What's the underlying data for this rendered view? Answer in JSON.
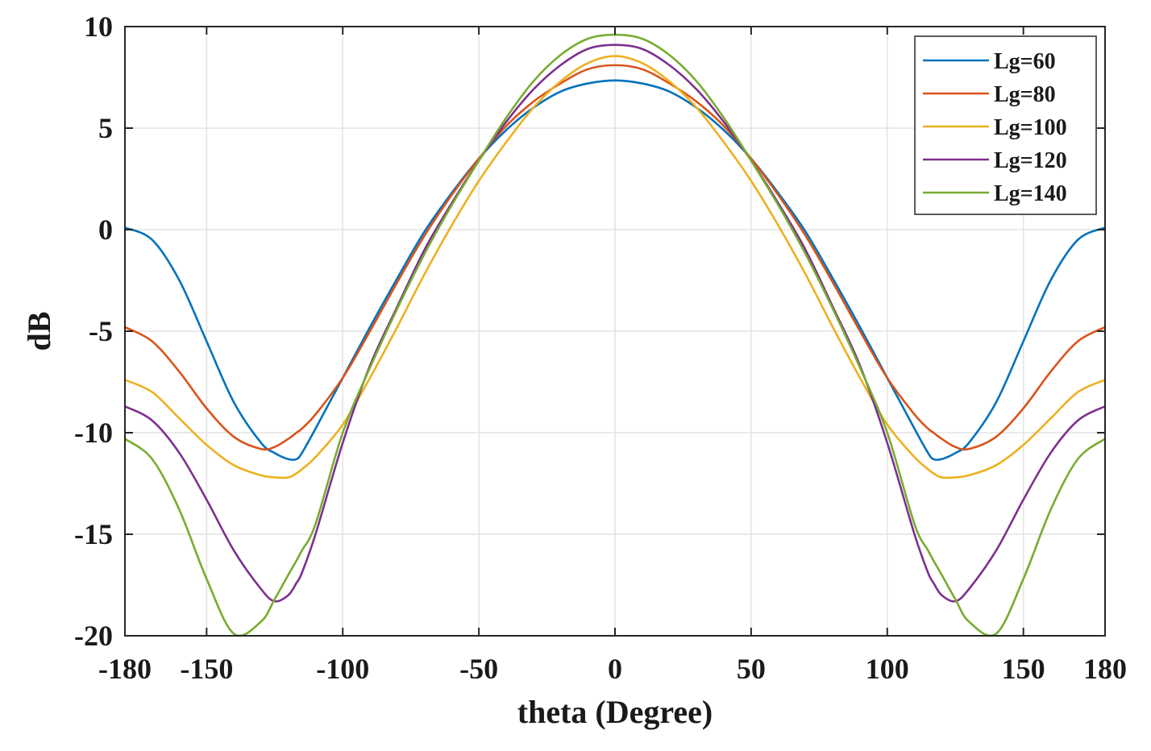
{
  "chart_data": {
    "type": "line",
    "title": "",
    "xlabel": "theta (Degree)",
    "ylabel": "dB",
    "xlim": [
      -180,
      180
    ],
    "ylim": [
      -20,
      10
    ],
    "xticks": [
      -180,
      -150,
      -100,
      -50,
      0,
      50,
      100,
      150,
      180
    ],
    "yticks": [
      -20,
      -15,
      -10,
      -5,
      0,
      5,
      10
    ],
    "xtick_labels": [
      "-180",
      "-150",
      "-100",
      "-50",
      "0",
      "50",
      "100",
      "150",
      "180"
    ],
    "ytick_labels": [
      "-20",
      "-15",
      "-10",
      "-5",
      "0",
      "5",
      "10"
    ],
    "grid": true,
    "legend_position": "top-right",
    "x": [
      -180,
      -170,
      -160,
      -150,
      -140,
      -130,
      -125,
      -120,
      -117,
      -115,
      -110,
      -100,
      -90,
      -80,
      -70,
      -60,
      -50,
      -40,
      -30,
      -20,
      -10,
      0,
      10,
      20,
      30,
      40,
      50,
      60,
      70,
      80,
      90,
      100,
      110,
      115,
      117,
      120,
      125,
      130,
      140,
      150,
      160,
      170,
      180
    ],
    "series": [
      {
        "name": "Lg=60",
        "color": "#0072BD",
        "values": [
          0.1,
          -0.5,
          -2.5,
          -5.5,
          -8.5,
          -10.5,
          -11.0,
          -11.3,
          -11.3,
          -11.0,
          -9.8,
          -7.3,
          -4.8,
          -2.4,
          -0.1,
          1.8,
          3.5,
          4.9,
          6.0,
          6.8,
          7.2,
          7.35,
          7.2,
          6.8,
          6.0,
          4.9,
          3.5,
          1.8,
          -0.1,
          -2.4,
          -4.8,
          -7.3,
          -9.8,
          -11.0,
          -11.3,
          -11.3,
          -11.0,
          -10.5,
          -8.5,
          -5.5,
          -2.5,
          -0.5,
          0.1
        ]
      },
      {
        "name": "Lg=80",
        "color": "#D95319",
        "values": [
          -4.8,
          -5.5,
          -7.0,
          -8.8,
          -10.2,
          -10.8,
          -10.7,
          -10.3,
          -10.0,
          -9.8,
          -9.1,
          -7.3,
          -5.0,
          -2.6,
          -0.3,
          1.7,
          3.5,
          5.1,
          6.3,
          7.2,
          7.9,
          8.1,
          7.9,
          7.2,
          6.3,
          5.1,
          3.5,
          1.7,
          -0.3,
          -2.6,
          -5.0,
          -7.3,
          -9.1,
          -9.8,
          -10.0,
          -10.3,
          -10.7,
          -10.8,
          -10.2,
          -8.8,
          -7.0,
          -5.5,
          -4.8
        ]
      },
      {
        "name": "Lg=100",
        "color": "#EDB120",
        "values": [
          -7.4,
          -8.0,
          -9.3,
          -10.6,
          -11.6,
          -12.1,
          -12.2,
          -12.2,
          -12.0,
          -11.8,
          -11.2,
          -9.6,
          -7.3,
          -4.8,
          -2.2,
          0.2,
          2.4,
          4.3,
          6.0,
          7.3,
          8.2,
          8.55,
          8.2,
          7.3,
          6.0,
          4.3,
          2.4,
          0.2,
          -2.2,
          -4.8,
          -7.3,
          -9.6,
          -11.2,
          -11.8,
          -12.0,
          -12.2,
          -12.2,
          -12.1,
          -11.6,
          -10.6,
          -9.3,
          -8.0,
          -7.4
        ]
      },
      {
        "name": "Lg=120",
        "color": "#7E2F8E",
        "values": [
          -8.7,
          -9.4,
          -11.0,
          -13.3,
          -15.8,
          -17.7,
          -18.3,
          -18.0,
          -17.4,
          -16.9,
          -15.0,
          -10.5,
          -6.7,
          -3.8,
          -1.0,
          1.3,
          3.4,
          5.3,
          6.9,
          8.1,
          8.9,
          9.1,
          8.9,
          8.1,
          6.9,
          5.3,
          3.4,
          1.3,
          -1.0,
          -3.8,
          -6.7,
          -10.5,
          -15.0,
          -16.9,
          -17.4,
          -18.0,
          -18.3,
          -17.7,
          -15.8,
          -13.3,
          -11.0,
          -9.4,
          -8.7
        ]
      },
      {
        "name": "Lg=140",
        "color": "#77AC30",
        "values": [
          -10.3,
          -11.3,
          -13.8,
          -17.2,
          -19.9,
          -19.3,
          -18.2,
          -17.0,
          -16.3,
          -15.8,
          -14.5,
          -10.0,
          -6.8,
          -3.9,
          -1.2,
          1.2,
          3.4,
          5.5,
          7.3,
          8.6,
          9.4,
          9.6,
          9.4,
          8.6,
          7.3,
          5.5,
          3.4,
          1.2,
          -1.2,
          -3.9,
          -6.8,
          -10.0,
          -14.5,
          -15.8,
          -16.3,
          -17.0,
          -18.2,
          -19.3,
          -19.9,
          -17.2,
          -13.8,
          -11.3,
          -10.3
        ]
      }
    ]
  }
}
